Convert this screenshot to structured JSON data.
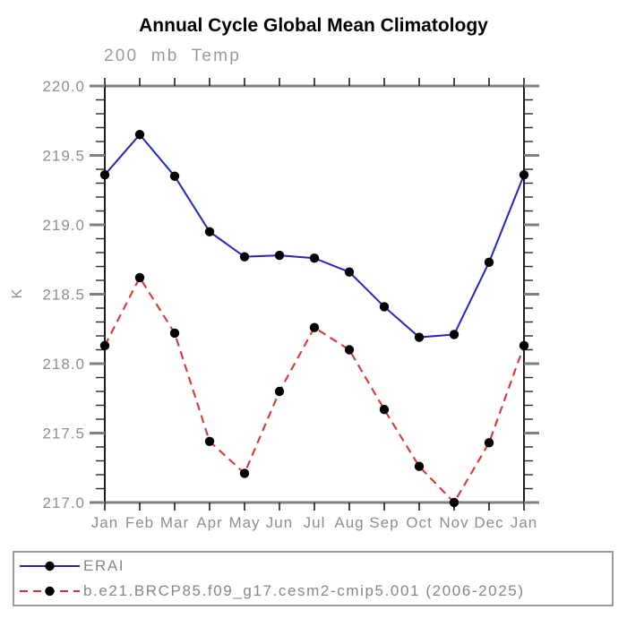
{
  "chart_data": {
    "type": "line",
    "title": "Annual Cycle Global Mean Climatology",
    "subtitle": "200 mb Temp",
    "xlabel": "",
    "ylabel": "K",
    "categories": [
      "Jan",
      "Feb",
      "Mar",
      "Apr",
      "May",
      "Jun",
      "Jul",
      "Aug",
      "Sep",
      "Oct",
      "Nov",
      "Dec",
      "Jan"
    ],
    "series": [
      {
        "name": "ERAI",
        "color": "#2222d0",
        "line_style": "solid",
        "marker": "filled-circle",
        "marker_color": "#000000",
        "values": [
          219.36,
          219.65,
          219.35,
          218.95,
          218.77,
          218.78,
          218.76,
          218.66,
          218.41,
          218.19,
          218.21,
          218.73,
          219.36
        ]
      },
      {
        "name": "b.e21.BRCP85.f09_g17.cesm2-cmip5.001 (2006-2025)",
        "color": "#ea2a2a",
        "line_style": "dashed",
        "marker": "filled-circle",
        "marker_color": "#000000",
        "values": [
          218.13,
          218.62,
          218.22,
          217.44,
          217.21,
          217.8,
          218.26,
          218.1,
          217.67,
          217.26,
          217.0,
          217.43,
          218.13
        ]
      }
    ],
    "ylim": [
      217.0,
      220.0
    ],
    "ytick_labels": [
      "220.0",
      "219.5",
      "219.0",
      "218.5",
      "218.0",
      "217.5",
      "217.0"
    ],
    "ytick_minor_step": 0.1,
    "grid": false,
    "legend_position": "bottom-left-box"
  },
  "colors": {
    "background": "#ffffff",
    "title_text": "#000000",
    "axis_label_text": "#8e8e8e",
    "horizontal_axis": "#808080",
    "vertical_axis": "#1c1c1c",
    "major_tick": "#808080",
    "minor_tick": "#2a2a2a",
    "series1_line": "#2222d0",
    "series2_line": "#ea2a2a",
    "marker": "#000000"
  }
}
